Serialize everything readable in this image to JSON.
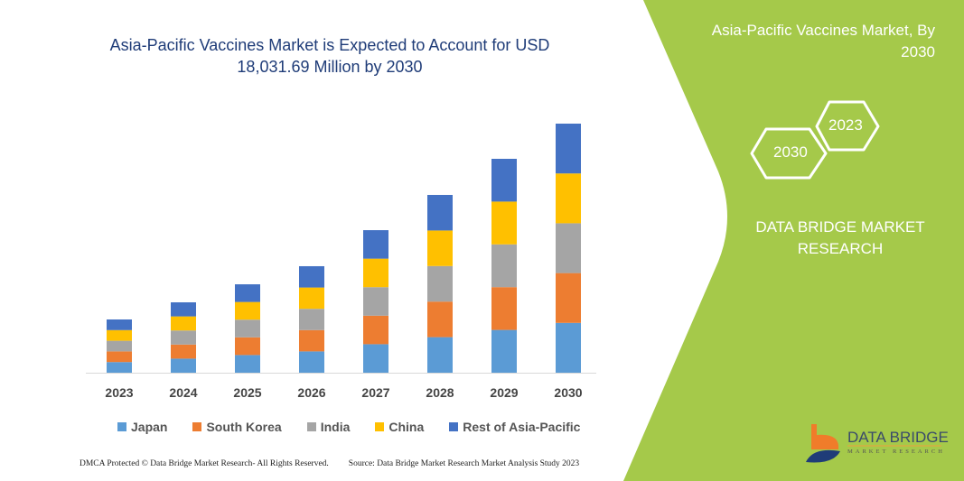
{
  "header": {
    "title_line1": "Asia-Pacific Vaccines Market is Expected to Account for USD",
    "title_line2": "18,031.69 Million by 2030"
  },
  "side_panel": {
    "title_line1": "Asia-Pacific Vaccines Market, By",
    "title_line2": "2030",
    "hex_left": "2030",
    "hex_right": "2023",
    "brand_line1": "DATA BRIDGE MARKET",
    "brand_line2": "RESEARCH",
    "color": "#a5c94a"
  },
  "logo": {
    "name": "DATA BRIDGE",
    "sub": "MARKET RESEARCH"
  },
  "footer": {
    "left": "DMCA Protected © Data Bridge Market Research-  All Rights Reserved.",
    "right": "Source: Data Bridge Market Research  Market Analysis Study 2023"
  },
  "chart_data": {
    "type": "bar",
    "stacked": true,
    "title": "Asia-Pacific Vaccines Market is Expected to Account for USD 18,031.69 Million by 2030",
    "categories": [
      "2023",
      "2024",
      "2025",
      "2026",
      "2027",
      "2028",
      "2029",
      "2030"
    ],
    "series": [
      {
        "name": "Japan",
        "color": "#5b9bd5",
        "values": [
          771,
          1019,
          1280,
          1542,
          2064,
          2574,
          3097,
          3606
        ]
      },
      {
        "name": "South Korea",
        "color": "#ed7d31",
        "values": [
          771,
          1019,
          1280,
          1542,
          2064,
          2574,
          3097,
          3606
        ]
      },
      {
        "name": "India",
        "color": "#a5a5a5",
        "values": [
          771,
          1019,
          1280,
          1542,
          2064,
          2574,
          3097,
          3606
        ]
      },
      {
        "name": "China",
        "color": "#ffc000",
        "values": [
          771,
          1019,
          1280,
          1542,
          2064,
          2574,
          3097,
          3607
        ]
      },
      {
        "name": "Rest of Asia-Pacific",
        "color": "#4472c4",
        "values": [
          771,
          1019,
          1280,
          1542,
          2064,
          2574,
          3097,
          3607
        ]
      }
    ],
    "ylim": [
      0,
      18031.69
    ],
    "y_axis_shown": false,
    "grid": false,
    "legend": "bottom"
  }
}
